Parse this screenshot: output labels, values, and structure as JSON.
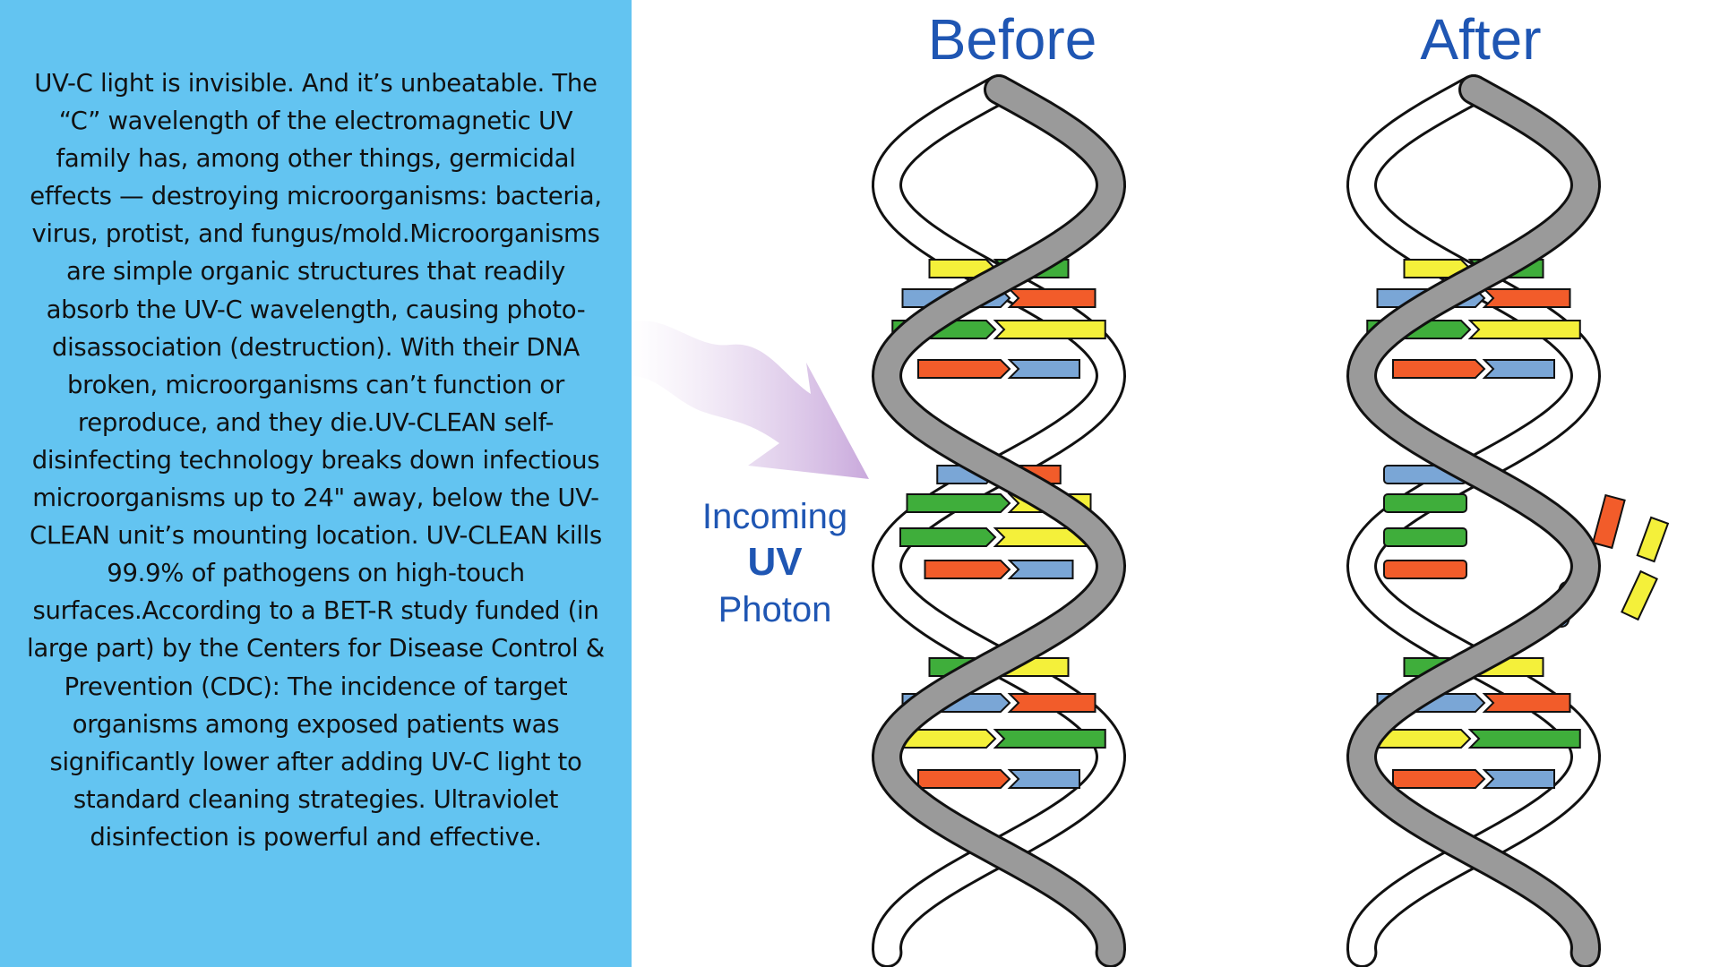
{
  "text_panel": {
    "body": "UV-C light is invisible. And it’s unbeatable. The “C” wavelength of the electromagnetic UV family has, among other things, germicidal effects — destroying microorganisms: bacteria, virus, protist, and fungus/mold.Microorganisms are simple organic structures that readily absorb the UV-C wavelength, causing photo-disassociation (destruction). With their DNA broken, microorganisms can’t function or reproduce, and they die.UV-CLEAN self-disinfecting technology breaks down infectious microorganisms up to 24\" away, below the UV-CLEAN unit’s mounting location. UV-CLEAN kills 99.9% of pathogens on high-touch surfaces.According to a BET-R study funded (in large part) by the Centers for Disease Control & Prevention (CDC): The incidence of target organisms among exposed patients was significantly lower after adding UV-C light to standard cleaning strategies. Ultraviolet disinfection is powerful and effective."
  },
  "diagram": {
    "before_label": "Before",
    "after_label": "After",
    "photon_label": {
      "line1": "Incoming",
      "line2": "UV",
      "line3": "Photon"
    }
  },
  "colors": {
    "panel_bg": "#63c4f1",
    "label_blue": "#1f56b3",
    "strand_gray": "#9a9a9a",
    "base_yellow": "#f4f03a",
    "base_green": "#3fae3b",
    "base_blue": "#7aa6d6",
    "base_orange": "#f25c2a",
    "arrow_purple": "#c9a9dc"
  }
}
